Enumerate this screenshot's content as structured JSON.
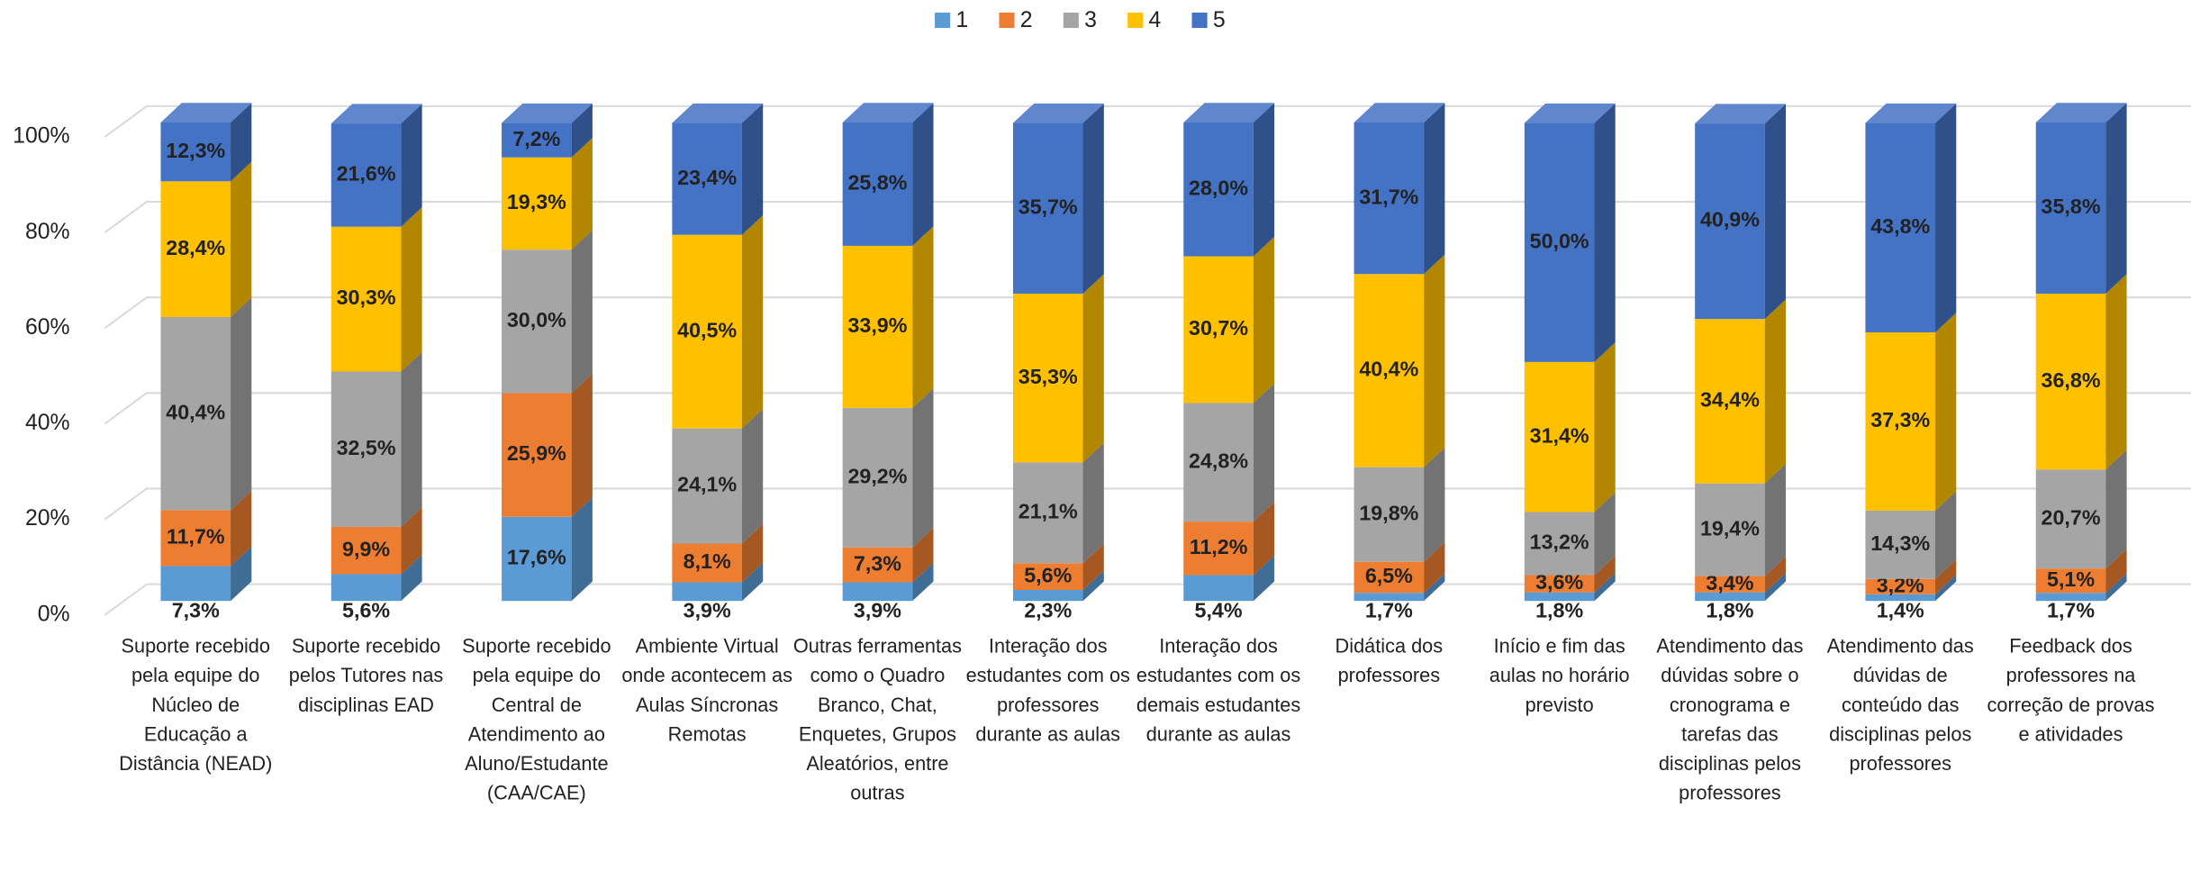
{
  "chart_data": {
    "type": "bar3d_stacked_percent",
    "categories": [
      "Suporte recebido pela equipe do Núcleo de Educação a Distância (NEAD)",
      "Suporte recebido pelos Tutores nas disciplinas EAD",
      "Suporte recebido pela equipe do Central de Atendimento ao Aluno/Estudante (CAA/CAE)",
      "Ambiente Virtual onde acontecem as Aulas Síncronas Remotas",
      "Outras ferramentas como o Quadro Branco, Chat, Enquetes, Grupos Aleatórios, entre outras",
      "Interação dos estudantes com os professores durante as aulas",
      "Interação dos estudantes com os demais estudantes durante as aulas",
      "Didática dos professores",
      "Início e fim das aulas no horário previsto",
      "Atendimento das dúvidas sobre o cronograma e tarefas das disciplinas pelos professores",
      "Atendimento das dúvidas de conteúdo das disciplinas pelos professores",
      "Feedback dos professores na correção de provas e atividades"
    ],
    "series": [
      {
        "name": "1",
        "color": "#5b9bd5",
        "values": [
          7.3,
          5.6,
          17.6,
          3.9,
          3.9,
          2.3,
          5.4,
          1.7,
          1.8,
          1.8,
          1.4,
          1.7
        ],
        "value_labels": [
          "7,3%",
          "5,6%",
          "17,6%",
          "3,9%",
          "3,9%",
          "2,3%",
          "5,4%",
          "1,7%",
          "1,8%",
          "1,8%",
          "1,4%",
          "1,7%"
        ]
      },
      {
        "name": "2",
        "color": "#ed7d31",
        "values": [
          11.7,
          9.9,
          25.9,
          8.1,
          7.3,
          5.6,
          11.2,
          6.5,
          3.6,
          3.4,
          3.2,
          5.1
        ],
        "value_labels": [
          "11,7%",
          "9,9%",
          "25,9%",
          "8,1%",
          "7,3%",
          "5,6%",
          "11,2%",
          "6,5%",
          "3,6%",
          "3,4%",
          "3,2%",
          "5,1%"
        ]
      },
      {
        "name": "3",
        "color": "#a5a5a5",
        "values": [
          40.4,
          32.5,
          30.0,
          24.1,
          29.2,
          21.1,
          24.8,
          19.8,
          13.2,
          19.4,
          14.3,
          20.7
        ],
        "value_labels": [
          "40,4%",
          "32,5%",
          "30,0%",
          "24,1%",
          "29,2%",
          "21,1%",
          "24,8%",
          "19,8%",
          "13,2%",
          "19,4%",
          "14,3%",
          "20,7%"
        ]
      },
      {
        "name": "4",
        "color": "#ffc000",
        "values": [
          28.4,
          30.3,
          19.3,
          40.5,
          33.9,
          35.3,
          30.7,
          40.4,
          31.4,
          34.4,
          37.3,
          36.8
        ],
        "value_labels": [
          "28,4%",
          "30,3%",
          "19,3%",
          "40,5%",
          "33,9%",
          "35,3%",
          "30,7%",
          "40,4%",
          "31,4%",
          "34,4%",
          "37,3%",
          "36,8%"
        ]
      },
      {
        "name": "5",
        "color": "#4472c4",
        "values": [
          12.3,
          21.6,
          7.2,
          23.4,
          25.8,
          35.7,
          28.0,
          31.7,
          50.0,
          40.9,
          43.8,
          35.8
        ],
        "value_labels": [
          "12,3%",
          "21,6%",
          "7,2%",
          "23,4%",
          "25,8%",
          "35,7%",
          "28,0%",
          "31,7%",
          "50,0%",
          "40,9%",
          "43,8%",
          "35,8%"
        ]
      }
    ],
    "ylim": [
      0,
      100
    ],
    "yticks": [
      {
        "value": 0,
        "label": "0%"
      },
      {
        "value": 20,
        "label": "20%"
      },
      {
        "value": 40,
        "label": "40%"
      },
      {
        "value": 60,
        "label": "60%"
      },
      {
        "value": 80,
        "label": "80%"
      },
      {
        "value": 100,
        "label": "100%"
      }
    ],
    "grid": true,
    "legend": "top"
  }
}
